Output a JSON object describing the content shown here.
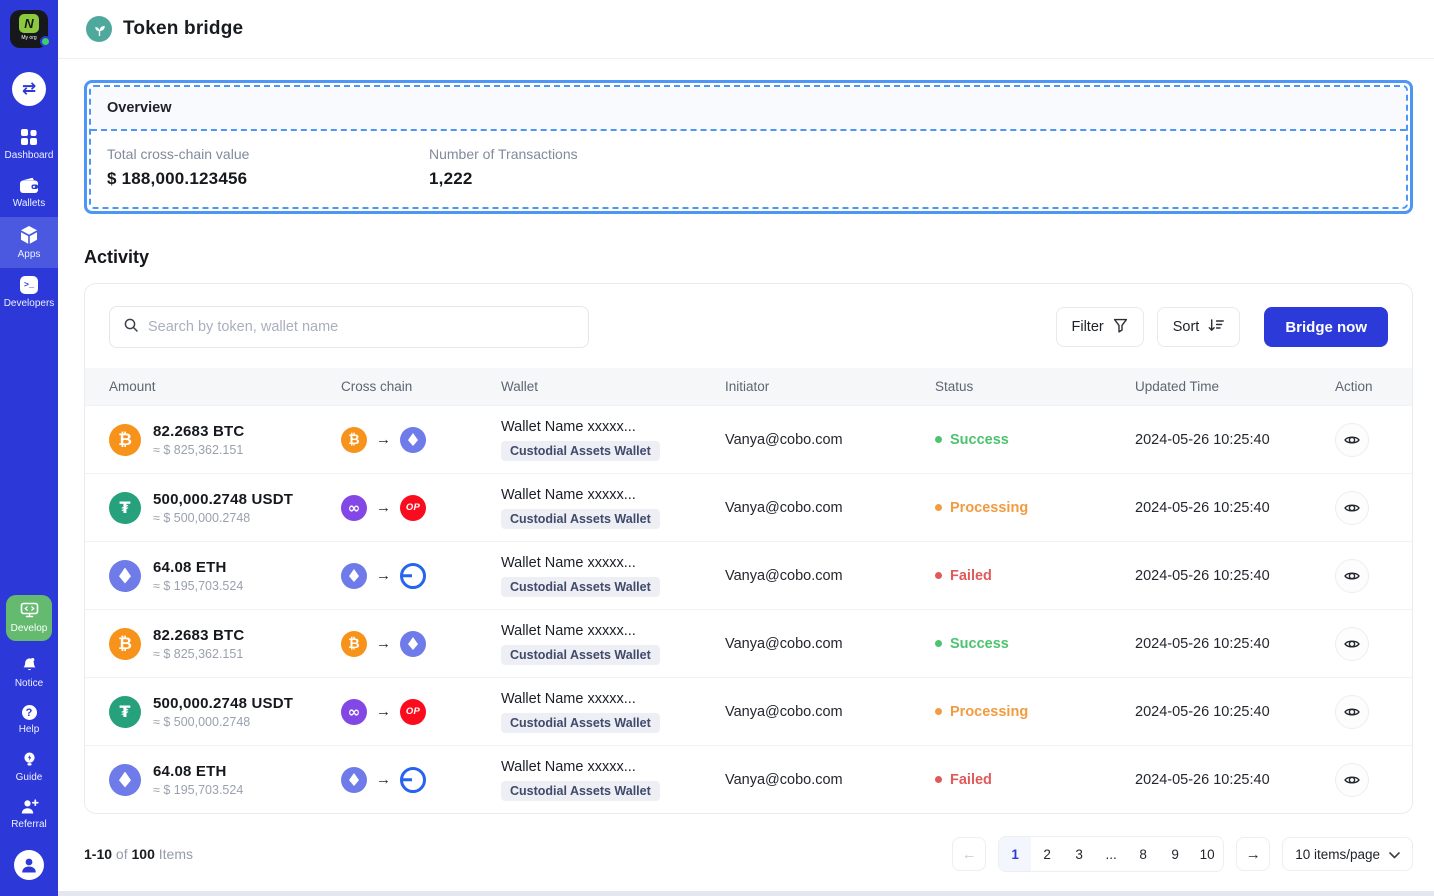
{
  "sidebar": {
    "org_name": "My org",
    "org_mark": "N",
    "items": [
      {
        "label": "Dashboard",
        "icon": "dashboard-icon"
      },
      {
        "label": "Wallets",
        "icon": "wallet-icon"
      },
      {
        "label": "Apps",
        "icon": "apps-cube-icon",
        "active": true
      },
      {
        "label": "Developers",
        "icon": "terminal-icon"
      }
    ],
    "develop_label": "Develop",
    "bottom_items": [
      {
        "label": "Notice",
        "icon": "bell-icon"
      },
      {
        "label": "Help",
        "icon": "question-icon"
      },
      {
        "label": "Guide",
        "icon": "bulb-icon"
      },
      {
        "label": "Referral",
        "icon": "add-person-icon"
      }
    ],
    "swap_glyph": "⇄",
    "help_glyph": "?"
  },
  "header": {
    "title": "Token bridge",
    "icon": "sprout-icon"
  },
  "overview": {
    "title": "Overview",
    "stats": [
      {
        "label": "Total cross-chain value",
        "value": "$ 188,000.123456"
      },
      {
        "label": "Number of Transactions",
        "value": "1,222"
      }
    ]
  },
  "activity": {
    "title": "Activity",
    "search_placeholder": "Search by token, wallet name",
    "filter_label": "Filter",
    "sort_label": "Sort",
    "bridge_button": "Bridge now",
    "columns": [
      "Amount",
      "Cross chain",
      "Wallet",
      "Initiator",
      "Status",
      "Updated Time",
      "Action"
    ],
    "rows": [
      {
        "amount": "82.2683 BTC",
        "fiat": "≈ $ 825,362.151",
        "token": "btc",
        "from": "btc",
        "to": "eth",
        "wallet_name": "Wallet Name xxxxx...",
        "wallet_tag": "Custodial Assets Wallet",
        "initiator": "Vanya@cobo.com",
        "status": "Success",
        "status_key": "success",
        "time": "2024-05-26 10:25:40"
      },
      {
        "amount": "500,000.2748 USDT",
        "fiat": "≈ $ 500,000.2748",
        "token": "usdt",
        "from": "polygon",
        "to": "op",
        "wallet_name": "Wallet Name xxxxx...",
        "wallet_tag": "Custodial Assets Wallet",
        "initiator": "Vanya@cobo.com",
        "status": "Processing",
        "status_key": "processing",
        "time": "2024-05-26 10:25:40"
      },
      {
        "amount": "64.08 ETH",
        "fiat": "≈ $ 195,703.524",
        "token": "eth",
        "from": "eth",
        "to": "ring",
        "wallet_name": "Wallet Name xxxxx...",
        "wallet_tag": "Custodial Assets Wallet",
        "initiator": "Vanya@cobo.com",
        "status": "Failed",
        "status_key": "failed",
        "time": "2024-05-26 10:25:40"
      },
      {
        "amount": "82.2683 BTC",
        "fiat": "≈ $ 825,362.151",
        "token": "btc",
        "from": "btc",
        "to": "eth",
        "wallet_name": "Wallet Name xxxxx...",
        "wallet_tag": "Custodial Assets Wallet",
        "initiator": "Vanya@cobo.com",
        "status": "Success",
        "status_key": "success",
        "time": "2024-05-26 10:25:40"
      },
      {
        "amount": "500,000.2748 USDT",
        "fiat": "≈ $ 500,000.2748",
        "token": "usdt",
        "from": "polygon",
        "to": "op",
        "wallet_name": "Wallet Name xxxxx...",
        "wallet_tag": "Custodial Assets Wallet",
        "initiator": "Vanya@cobo.com",
        "status": "Processing",
        "status_key": "processing",
        "time": "2024-05-26 10:25:40"
      },
      {
        "amount": "64.08 ETH",
        "fiat": "≈ $ 195,703.524",
        "token": "eth",
        "from": "eth",
        "to": "ring",
        "wallet_name": "Wallet Name xxxxx...",
        "wallet_tag": "Custodial Assets Wallet",
        "initiator": "Vanya@cobo.com",
        "status": "Failed",
        "status_key": "failed",
        "time": "2024-05-26 10:25:40"
      }
    ],
    "pagination": {
      "range": "1-10",
      "of_label": "of",
      "total": "100",
      "items_label": "Items",
      "pages": [
        "1",
        "2",
        "3",
        "...",
        "8",
        "9",
        "10"
      ],
      "active_page": "1",
      "page_size_label": "10 items/page",
      "prev_glyph": "←",
      "next_glyph": "→"
    }
  },
  "colors": {
    "brand_primary": "#2c3ad9",
    "sidebar_bg": "#2c38d8",
    "selection_outline": "#4d96f7",
    "develop_green": "#64ba6e",
    "success": "#4cc46f",
    "processing": "#f29b40",
    "failed": "#e15a5a",
    "btc": "#f7931a",
    "usdt": "#26a17b",
    "eth": "#6e7be8",
    "polygon": "#8247e5",
    "optimism": "#fb0b1e"
  }
}
